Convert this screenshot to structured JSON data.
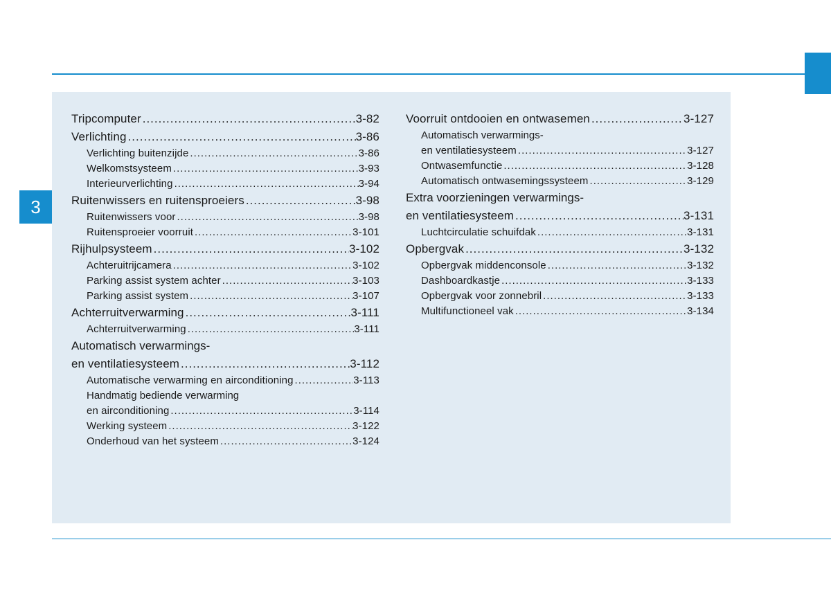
{
  "chapter_number": "3",
  "colors": {
    "accent": "#168dcd",
    "panel_bg": "#e1ebf3",
    "text": "#1b1b1b",
    "page_bg": "#ffffff"
  },
  "toc": {
    "left": [
      {
        "level": 0,
        "label": "Tripcomputer",
        "page": "3-82"
      },
      {
        "level": 0,
        "label": "Verlichting",
        "page": "3-86"
      },
      {
        "level": 1,
        "label": "Verlichting buitenzijde",
        "page": "3-86"
      },
      {
        "level": 1,
        "label": "Welkomstsysteem",
        "page": "3-93"
      },
      {
        "level": 1,
        "label": "Interieurverlichting",
        "page": "3-94"
      },
      {
        "level": 0,
        "label": "Ruitenwissers en ruitensproeiers",
        "page": "3-98"
      },
      {
        "level": 1,
        "label": "Ruitenwissers voor",
        "page": "3-98"
      },
      {
        "level": 1,
        "label": "Ruitensproeier voorruit",
        "page": "3-101"
      },
      {
        "level": 0,
        "label": "Rijhulpsysteem",
        "page": "3-102"
      },
      {
        "level": 1,
        "label": "Achteruitrijcamera",
        "page": "3-102"
      },
      {
        "level": 1,
        "label": "Parking assist system achter",
        "page": "3-103"
      },
      {
        "level": 1,
        "label": "Parking assist system",
        "page": "3-107"
      },
      {
        "level": 0,
        "label": "Achterruitverwarming",
        "page": "3-111"
      },
      {
        "level": 1,
        "label": "Achterruitverwarming",
        "page": "3-111"
      },
      {
        "level": 0,
        "label_pre": "Automatisch verwarmings-",
        "label": "en ventilatiesysteem",
        "page": "3-112"
      },
      {
        "level": 1,
        "label": "Automatische verwarming en airconditioning",
        "page": "3-113"
      },
      {
        "level": 1,
        "label_pre": "Handmatig bediende verwarming",
        "label": "en airconditioning",
        "page": "3-114"
      },
      {
        "level": 1,
        "label": "Werking systeem",
        "page": "3-122"
      },
      {
        "level": 1,
        "label": "Onderhoud van het systeem",
        "page": "3-124"
      }
    ],
    "right": [
      {
        "level": 0,
        "label": "Voorruit ontdooien en ontwasemen",
        "page": "3-127"
      },
      {
        "level": 1,
        "label_pre": "Automatisch verwarmings-",
        "label": "en ventilatiesysteem",
        "page": "3-127"
      },
      {
        "level": 1,
        "label": "Ontwasemfunctie",
        "page": "3-128"
      },
      {
        "level": 1,
        "label": "Automatisch ontwasemingssysteem",
        "page": "3-129"
      },
      {
        "level": 0,
        "label_pre": "Extra voorzieningen verwarmings-",
        "label": "en ventilatiesysteem",
        "page": "3-131"
      },
      {
        "level": 1,
        "label": "Luchtcirculatie schuifdak",
        "page": "3-131"
      },
      {
        "level": 0,
        "label": "Opbergvak",
        "page": "3-132"
      },
      {
        "level": 1,
        "label": "Opbergvak middenconsole",
        "page": "3-132"
      },
      {
        "level": 1,
        "label": "Dashboardkastje",
        "page": "3-133"
      },
      {
        "level": 1,
        "label": "Opbergvak voor zonnebril",
        "page": "3-133"
      },
      {
        "level": 1,
        "label": "Multifunctioneel vak",
        "page": "3-134"
      }
    ]
  }
}
